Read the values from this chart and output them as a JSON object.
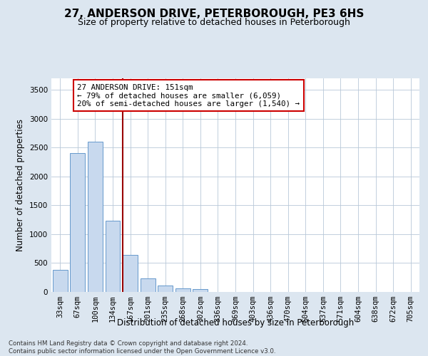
{
  "title": "27, ANDERSON DRIVE, PETERBOROUGH, PE3 6HS",
  "subtitle": "Size of property relative to detached houses in Peterborough",
  "xlabel": "Distribution of detached houses by size in Peterborough",
  "ylabel": "Number of detached properties",
  "footer_line1": "Contains HM Land Registry data © Crown copyright and database right 2024.",
  "footer_line2": "Contains public sector information licensed under the Open Government Licence v3.0.",
  "categories": [
    "33sqm",
    "67sqm",
    "100sqm",
    "134sqm",
    "167sqm",
    "201sqm",
    "235sqm",
    "268sqm",
    "302sqm",
    "336sqm",
    "369sqm",
    "403sqm",
    "436sqm",
    "470sqm",
    "504sqm",
    "537sqm",
    "571sqm",
    "604sqm",
    "638sqm",
    "672sqm",
    "705sqm"
  ],
  "values": [
    380,
    2400,
    2600,
    1230,
    640,
    240,
    105,
    60,
    50,
    0,
    0,
    0,
    0,
    0,
    0,
    0,
    0,
    0,
    0,
    0,
    0
  ],
  "bar_color": "#c8d9ee",
  "bar_edge_color": "#6699cc",
  "property_line_x": 3.55,
  "property_line_color": "#990000",
  "annotation_text": "27 ANDERSON DRIVE: 151sqm\n← 79% of detached houses are smaller (6,059)\n20% of semi-detached houses are larger (1,540) →",
  "annotation_box_color": "#ffffff",
  "annotation_box_edge_color": "#cc0000",
  "ylim": [
    0,
    3700
  ],
  "yticks": [
    0,
    500,
    1000,
    1500,
    2000,
    2500,
    3000,
    3500
  ],
  "background_color": "#dce6f0",
  "plot_background_color": "#ffffff",
  "grid_color": "#b8c8d8",
  "title_fontsize": 11,
  "subtitle_fontsize": 9,
  "axis_label_fontsize": 8.5,
  "tick_fontsize": 7.5,
  "annotation_fontsize": 7.8,
  "footer_fontsize": 6.2
}
